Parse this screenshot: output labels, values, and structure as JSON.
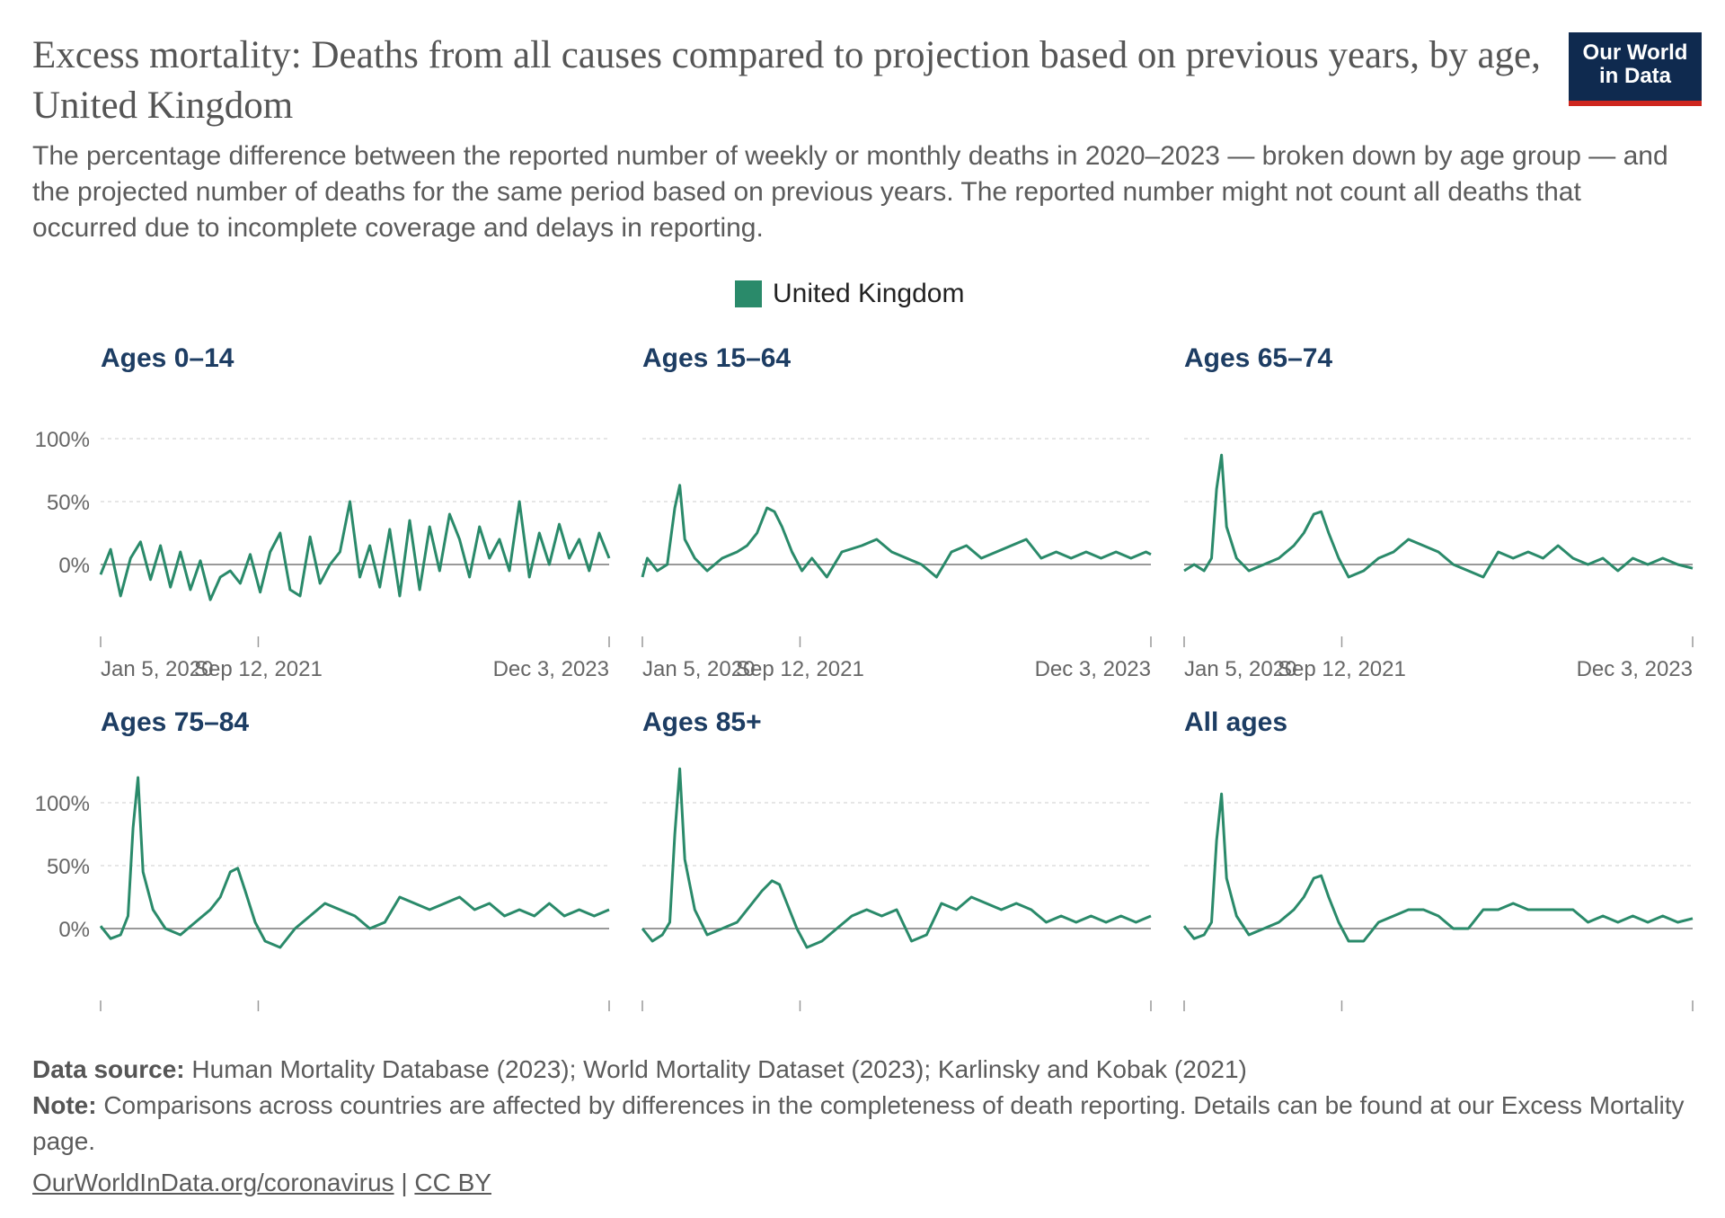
{
  "header": {
    "title": "Excess mortality: Deaths from all causes compared to projection based on previous years, by age, United Kingdom",
    "subtitle": "The percentage difference between the reported number of weekly or monthly deaths in 2020–2023 — broken down by age group — and the projected number of deaths for the same period based on previous years. The reported number might not count all deaths that occurred due to incomplete coverage and delays in reporting.",
    "logo_line1": "Our World",
    "logo_line2": "in Data"
  },
  "legend": {
    "label": "United Kingdom",
    "color": "#2a8a6a"
  },
  "footer": {
    "source_label": "Data source:",
    "source_text": "Human Mortality Database (2023); World Mortality Dataset (2023); Karlinsky and Kobak (2021)",
    "note_label": "Note:",
    "note_text": "Comparisons across countries are affected by differences in the completeness of death reporting. Details can be found at our Excess Mortality page.",
    "link1": "OurWorldInData.org/coronavirus",
    "separator": "|",
    "link2": "CC BY"
  },
  "colors": {
    "line": "#2a8a6a",
    "panel_title": "#1d3d63",
    "grid": "#dddddd",
    "zero": "#999999"
  },
  "chart_data": [
    {
      "type": "line",
      "title": "Ages 0–14",
      "series_name": "United Kingdom",
      "y_ticks": [
        {
          "v": 0,
          "label": "0%"
        },
        {
          "v": 50,
          "label": "50%"
        },
        {
          "v": 100,
          "label": "100%"
        }
      ],
      "x_ticks": [
        "Jan 5, 2020",
        "Sep 12, 2021",
        "Dec 3, 2023"
      ],
      "x_range": [
        "2020-01-05",
        "2023-12-03"
      ],
      "ylim": [
        -40,
        100
      ],
      "points": [
        [
          "2020-01-05",
          -8
        ],
        [
          "2020-02-02",
          12
        ],
        [
          "2020-03-01",
          -25
        ],
        [
          "2020-03-29",
          5
        ],
        [
          "2020-04-26",
          18
        ],
        [
          "2020-05-24",
          -12
        ],
        [
          "2020-06-21",
          15
        ],
        [
          "2020-07-19",
          -18
        ],
        [
          "2020-08-16",
          10
        ],
        [
          "2020-09-13",
          -20
        ],
        [
          "2020-10-11",
          3
        ],
        [
          "2020-11-08",
          -28
        ],
        [
          "2020-12-06",
          -10
        ],
        [
          "2021-01-03",
          -5
        ],
        [
          "2021-01-31",
          -15
        ],
        [
          "2021-02-28",
          8
        ],
        [
          "2021-03-28",
          -22
        ],
        [
          "2021-04-25",
          10
        ],
        [
          "2021-05-23",
          25
        ],
        [
          "2021-06-20",
          -20
        ],
        [
          "2021-07-18",
          -25
        ],
        [
          "2021-08-15",
          22
        ],
        [
          "2021-09-12",
          -15
        ],
        [
          "2021-10-10",
          0
        ],
        [
          "2021-11-07",
          10
        ],
        [
          "2021-12-05",
          50
        ],
        [
          "2022-01-02",
          -10
        ],
        [
          "2022-01-30",
          15
        ],
        [
          "2022-02-27",
          -18
        ],
        [
          "2022-03-27",
          28
        ],
        [
          "2022-04-24",
          -25
        ],
        [
          "2022-05-22",
          35
        ],
        [
          "2022-06-19",
          -20
        ],
        [
          "2022-07-17",
          30
        ],
        [
          "2022-08-14",
          -5
        ],
        [
          "2022-09-11",
          40
        ],
        [
          "2022-10-09",
          20
        ],
        [
          "2022-11-06",
          -10
        ],
        [
          "2022-12-04",
          30
        ],
        [
          "2023-01-01",
          5
        ],
        [
          "2023-01-29",
          20
        ],
        [
          "2023-02-26",
          -5
        ],
        [
          "2023-03-26",
          50
        ],
        [
          "2023-04-23",
          -10
        ],
        [
          "2023-05-21",
          25
        ],
        [
          "2023-06-18",
          0
        ],
        [
          "2023-07-16",
          32
        ],
        [
          "2023-08-13",
          5
        ],
        [
          "2023-09-10",
          20
        ],
        [
          "2023-10-08",
          -5
        ],
        [
          "2023-11-05",
          25
        ],
        [
          "2023-12-03",
          5
        ]
      ]
    },
    {
      "type": "line",
      "title": "Ages 15–64",
      "series_name": "United Kingdom",
      "y_ticks": [
        {
          "v": 0,
          "label": "0%"
        },
        {
          "v": 50,
          "label": "50%"
        },
        {
          "v": 100,
          "label": "100%"
        }
      ],
      "x_ticks": [
        "Jan 5, 2020",
        "Sep 12, 2021",
        "Dec 3, 2023"
      ],
      "x_range": [
        "2020-01-05",
        "2023-12-03"
      ],
      "ylim": [
        -40,
        100
      ],
      "points": [
        [
          "2020-01-05",
          -10
        ],
        [
          "2020-01-19",
          5
        ],
        [
          "2020-02-16",
          -5
        ],
        [
          "2020-03-15",
          0
        ],
        [
          "2020-04-05",
          45
        ],
        [
          "2020-04-19",
          63
        ],
        [
          "2020-05-03",
          20
        ],
        [
          "2020-05-31",
          5
        ],
        [
          "2020-07-05",
          -5
        ],
        [
          "2020-08-16",
          5
        ],
        [
          "2020-09-27",
          10
        ],
        [
          "2020-10-25",
          15
        ],
        [
          "2020-11-22",
          25
        ],
        [
          "2020-12-20",
          45
        ],
        [
          "2021-01-10",
          42
        ],
        [
          "2021-01-31",
          30
        ],
        [
          "2021-02-28",
          10
        ],
        [
          "2021-03-28",
          -5
        ],
        [
          "2021-04-25",
          5
        ],
        [
          "2021-06-06",
          -10
        ],
        [
          "2021-07-18",
          10
        ],
        [
          "2021-09-12",
          15
        ],
        [
          "2021-10-24",
          20
        ],
        [
          "2021-12-05",
          10
        ],
        [
          "2022-01-16",
          5
        ],
        [
          "2022-02-27",
          0
        ],
        [
          "2022-04-10",
          -10
        ],
        [
          "2022-05-22",
          10
        ],
        [
          "2022-07-03",
          15
        ],
        [
          "2022-08-14",
          5
        ],
        [
          "2022-09-25",
          10
        ],
        [
          "2022-11-06",
          15
        ],
        [
          "2022-12-18",
          20
        ],
        [
          "2023-01-29",
          5
        ],
        [
          "2023-03-12",
          10
        ],
        [
          "2023-04-23",
          5
        ],
        [
          "2023-06-04",
          10
        ],
        [
          "2023-07-16",
          5
        ],
        [
          "2023-08-27",
          10
        ],
        [
          "2023-10-08",
          5
        ],
        [
          "2023-11-19",
          10
        ],
        [
          "2023-12-03",
          8
        ]
      ]
    },
    {
      "type": "line",
      "title": "Ages 65–74",
      "series_name": "United Kingdom",
      "y_ticks": [
        {
          "v": 0,
          "label": "0%"
        },
        {
          "v": 50,
          "label": "50%"
        },
        {
          "v": 100,
          "label": "100%"
        }
      ],
      "x_ticks": [
        "Jan 5, 2020",
        "Sep 12, 2021",
        "Dec 3, 2023"
      ],
      "x_range": [
        "2020-01-05",
        "2023-12-03"
      ],
      "ylim": [
        -40,
        100
      ],
      "points": [
        [
          "2020-01-05",
          -5
        ],
        [
          "2020-02-02",
          0
        ],
        [
          "2020-03-01",
          -5
        ],
        [
          "2020-03-22",
          5
        ],
        [
          "2020-04-05",
          60
        ],
        [
          "2020-04-19",
          87
        ],
        [
          "2020-05-03",
          30
        ],
        [
          "2020-05-31",
          5
        ],
        [
          "2020-07-05",
          -5
        ],
        [
          "2020-08-16",
          0
        ],
        [
          "2020-09-27",
          5
        ],
        [
          "2020-11-08",
          15
        ],
        [
          "2020-12-06",
          25
        ],
        [
          "2021-01-03",
          40
        ],
        [
          "2021-01-24",
          42
        ],
        [
          "2021-02-14",
          25
        ],
        [
          "2021-03-14",
          5
        ],
        [
          "2021-04-11",
          -10
        ],
        [
          "2021-05-23",
          -5
        ],
        [
          "2021-07-04",
          5
        ],
        [
          "2021-08-15",
          10
        ],
        [
          "2021-09-26",
          20
        ],
        [
          "2021-11-07",
          15
        ],
        [
          "2021-12-19",
          10
        ],
        [
          "2022-01-30",
          0
        ],
        [
          "2022-03-13",
          -5
        ],
        [
          "2022-04-24",
          -10
        ],
        [
          "2022-06-05",
          10
        ],
        [
          "2022-07-17",
          5
        ],
        [
          "2022-08-28",
          10
        ],
        [
          "2022-10-09",
          5
        ],
        [
          "2022-11-20",
          15
        ],
        [
          "2023-01-01",
          5
        ],
        [
          "2023-02-12",
          0
        ],
        [
          "2023-03-26",
          5
        ],
        [
          "2023-05-07",
          -5
        ],
        [
          "2023-06-18",
          5
        ],
        [
          "2023-07-30",
          0
        ],
        [
          "2023-09-10",
          5
        ],
        [
          "2023-10-22",
          0
        ],
        [
          "2023-12-03",
          -3
        ]
      ]
    },
    {
      "type": "line",
      "title": "Ages 75–84",
      "series_name": "United Kingdom",
      "y_ticks": [
        {
          "v": 0,
          "label": "0%"
        },
        {
          "v": 50,
          "label": "50%"
        },
        {
          "v": 100,
          "label": "100%"
        }
      ],
      "x_ticks": [
        "Jan 5, 2020",
        "Sep 12, 2021",
        "Dec 3, 2023"
      ],
      "x_range": [
        "2020-01-05",
        "2023-12-03"
      ],
      "ylim": [
        -40,
        130
      ],
      "points": [
        [
          "2020-01-05",
          2
        ],
        [
          "2020-02-02",
          -8
        ],
        [
          "2020-03-01",
          -5
        ],
        [
          "2020-03-22",
          10
        ],
        [
          "2020-04-05",
          80
        ],
        [
          "2020-04-19",
          120
        ],
        [
          "2020-05-03",
          45
        ],
        [
          "2020-05-31",
          15
        ],
        [
          "2020-07-05",
          0
        ],
        [
          "2020-08-16",
          -5
        ],
        [
          "2020-09-27",
          5
        ],
        [
          "2020-11-08",
          15
        ],
        [
          "2020-12-06",
          25
        ],
        [
          "2021-01-03",
          45
        ],
        [
          "2021-01-24",
          48
        ],
        [
          "2021-02-14",
          30
        ],
        [
          "2021-03-14",
          5
        ],
        [
          "2021-04-11",
          -10
        ],
        [
          "2021-05-23",
          -15
        ],
        [
          "2021-07-04",
          0
        ],
        [
          "2021-08-15",
          10
        ],
        [
          "2021-09-26",
          20
        ],
        [
          "2021-11-07",
          15
        ],
        [
          "2021-12-19",
          10
        ],
        [
          "2022-01-30",
          0
        ],
        [
          "2022-03-13",
          5
        ],
        [
          "2022-04-24",
          25
        ],
        [
          "2022-06-05",
          20
        ],
        [
          "2022-07-17",
          15
        ],
        [
          "2022-08-28",
          20
        ],
        [
          "2022-10-09",
          25
        ],
        [
          "2022-11-20",
          15
        ],
        [
          "2023-01-01",
          20
        ],
        [
          "2023-02-12",
          10
        ],
        [
          "2023-03-26",
          15
        ],
        [
          "2023-05-07",
          10
        ],
        [
          "2023-06-18",
          20
        ],
        [
          "2023-07-30",
          10
        ],
        [
          "2023-09-10",
          15
        ],
        [
          "2023-10-22",
          10
        ],
        [
          "2023-12-03",
          15
        ]
      ]
    },
    {
      "type": "line",
      "title": "Ages 85+",
      "series_name": "United Kingdom",
      "y_ticks": [
        {
          "v": 0,
          "label": "0%"
        },
        {
          "v": 50,
          "label": "50%"
        },
        {
          "v": 100,
          "label": "100%"
        }
      ],
      "x_ticks": [
        "Jan 5, 2020",
        "Sep 12, 2021",
        "Dec 3, 2023"
      ],
      "x_range": [
        "2020-01-05",
        "2023-12-03"
      ],
      "ylim": [
        -40,
        130
      ],
      "points": [
        [
          "2020-01-05",
          0
        ],
        [
          "2020-02-02",
          -10
        ],
        [
          "2020-03-01",
          -5
        ],
        [
          "2020-03-22",
          5
        ],
        [
          "2020-04-05",
          75
        ],
        [
          "2020-04-19",
          127
        ],
        [
          "2020-05-03",
          55
        ],
        [
          "2020-05-31",
          15
        ],
        [
          "2020-07-05",
          -5
        ],
        [
          "2020-08-16",
          0
        ],
        [
          "2020-09-27",
          5
        ],
        [
          "2020-11-08",
          20
        ],
        [
          "2020-12-06",
          30
        ],
        [
          "2021-01-03",
          38
        ],
        [
          "2021-01-24",
          35
        ],
        [
          "2021-02-14",
          20
        ],
        [
          "2021-03-14",
          0
        ],
        [
          "2021-04-11",
          -15
        ],
        [
          "2021-05-23",
          -10
        ],
        [
          "2021-07-04",
          0
        ],
        [
          "2021-08-15",
          10
        ],
        [
          "2021-09-26",
          15
        ],
        [
          "2021-11-07",
          10
        ],
        [
          "2021-12-19",
          15
        ],
        [
          "2022-01-30",
          -10
        ],
        [
          "2022-03-13",
          -5
        ],
        [
          "2022-04-24",
          20
        ],
        [
          "2022-06-05",
          15
        ],
        [
          "2022-07-17",
          25
        ],
        [
          "2022-08-28",
          20
        ],
        [
          "2022-10-09",
          15
        ],
        [
          "2022-11-20",
          20
        ],
        [
          "2023-01-01",
          15
        ],
        [
          "2023-02-12",
          5
        ],
        [
          "2023-03-26",
          10
        ],
        [
          "2023-05-07",
          5
        ],
        [
          "2023-06-18",
          10
        ],
        [
          "2023-07-30",
          5
        ],
        [
          "2023-09-10",
          10
        ],
        [
          "2023-10-22",
          5
        ],
        [
          "2023-12-03",
          10
        ]
      ]
    },
    {
      "type": "line",
      "title": "All ages",
      "series_name": "United Kingdom",
      "y_ticks": [
        {
          "v": 0,
          "label": "0%"
        },
        {
          "v": 50,
          "label": "50%"
        },
        {
          "v": 100,
          "label": "100%"
        }
      ],
      "x_ticks": [
        "Jan 5, 2020",
        "Sep 12, 2021",
        "Dec 3, 2023"
      ],
      "x_range": [
        "2020-01-05",
        "2023-12-03"
      ],
      "ylim": [
        -40,
        130
      ],
      "points": [
        [
          "2020-01-05",
          2
        ],
        [
          "2020-02-02",
          -8
        ],
        [
          "2020-03-01",
          -5
        ],
        [
          "2020-03-22",
          5
        ],
        [
          "2020-04-05",
          70
        ],
        [
          "2020-04-19",
          107
        ],
        [
          "2020-05-03",
          40
        ],
        [
          "2020-05-31",
          10
        ],
        [
          "2020-07-05",
          -5
        ],
        [
          "2020-08-16",
          0
        ],
        [
          "2020-09-27",
          5
        ],
        [
          "2020-11-08",
          15
        ],
        [
          "2020-12-06",
          25
        ],
        [
          "2021-01-03",
          40
        ],
        [
          "2021-01-24",
          42
        ],
        [
          "2021-02-14",
          25
        ],
        [
          "2021-03-14",
          5
        ],
        [
          "2021-04-11",
          -10
        ],
        [
          "2021-05-23",
          -10
        ],
        [
          "2021-07-04",
          5
        ],
        [
          "2021-08-15",
          10
        ],
        [
          "2021-09-26",
          15
        ],
        [
          "2021-11-07",
          15
        ],
        [
          "2021-12-19",
          10
        ],
        [
          "2022-01-30",
          0
        ],
        [
          "2022-03-13",
          0
        ],
        [
          "2022-04-24",
          15
        ],
        [
          "2022-06-05",
          15
        ],
        [
          "2022-07-17",
          20
        ],
        [
          "2022-08-28",
          15
        ],
        [
          "2022-10-09",
          15
        ],
        [
          "2022-11-20",
          15
        ],
        [
          "2023-01-01",
          15
        ],
        [
          "2023-02-12",
          5
        ],
        [
          "2023-03-26",
          10
        ],
        [
          "2023-05-07",
          5
        ],
        [
          "2023-06-18",
          10
        ],
        [
          "2023-07-30",
          5
        ],
        [
          "2023-09-10",
          10
        ],
        [
          "2023-10-22",
          5
        ],
        [
          "2023-12-03",
          8
        ]
      ]
    }
  ]
}
